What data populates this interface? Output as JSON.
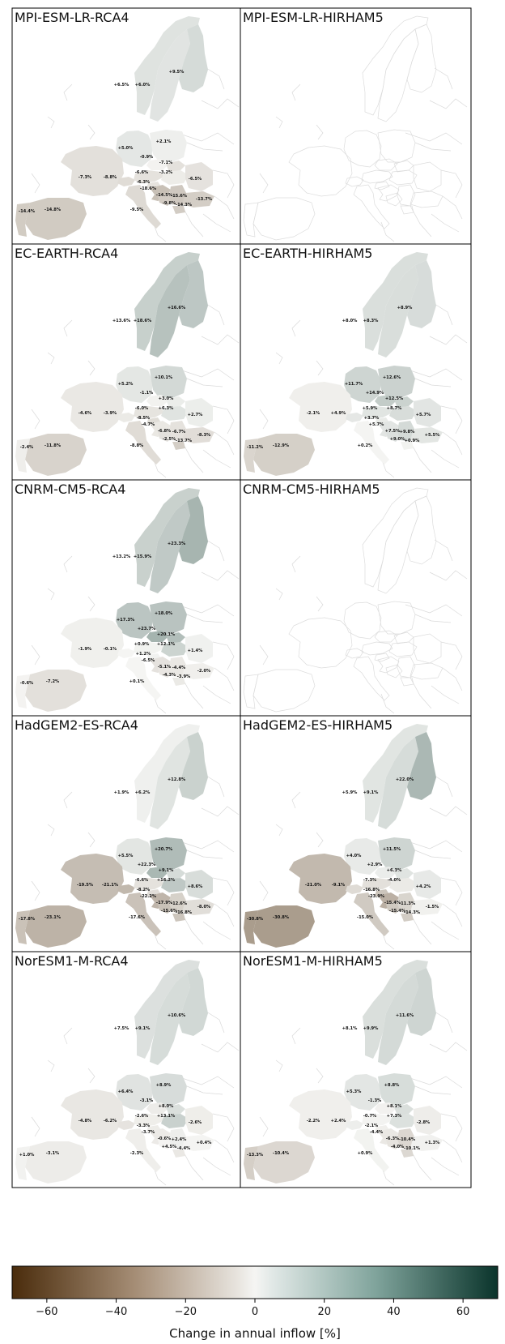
{
  "chart_data": {
    "type": "heatmap",
    "value_format": "percent",
    "colorbar": {
      "label": "Change in annual inflow [%]",
      "range": [
        -70,
        70
      ],
      "ticks": [
        -60,
        -40,
        -20,
        0,
        20,
        40,
        60
      ],
      "palette": {
        "neg_end": "#4a2c0c",
        "mid": "#f5f5f3",
        "pos_end": "#0a342b"
      }
    },
    "region_keys": [
      "NO",
      "SE",
      "FI",
      "DE",
      "PL",
      "FR",
      "CH",
      "AT",
      "CZ",
      "SK",
      "HU",
      "RO",
      "SI",
      "HR",
      "BA",
      "RS",
      "BG",
      "MK",
      "ES",
      "PT",
      "IT"
    ],
    "panels": [
      {
        "title": "MPI-ESM-LR-RCA4",
        "regions": {
          "NO": 6.5,
          "SE": 6.0,
          "FI": 9.5,
          "DE": 5.0,
          "PL": 2.1,
          "FR": -7.3,
          "CH": -8.8,
          "AT": -6.6,
          "CZ": -0.9,
          "SK": -7.1,
          "HU": -3.2,
          "RO": -6.5,
          "SI": -6.3,
          "HR": -18.6,
          "BA": -14.5,
          "RS": -15.6,
          "BG": -13.7,
          "MK": -14.3,
          "ES": -14.8,
          "PT": -14.4,
          "IT": -9.5
        },
        "extra_labels": [
          -9.8
        ]
      },
      {
        "title": "MPI-ESM-LR-HIRHAM5",
        "regions": {}
      },
      {
        "title": "EC-EARTH-RCA4",
        "regions": {
          "NO": 13.6,
          "SE": 18.6,
          "FI": 16.6,
          "DE": 5.2,
          "PL": 10.1,
          "FR": -4.6,
          "CH": -3.9,
          "AT": -6.0,
          "CZ": -1.1,
          "SK": 3.0,
          "HU": 6.3,
          "RO": 2.7,
          "SI": -8.5,
          "HR": -4.7,
          "BA": -6.8,
          "RS": -6.7,
          "BG": -8.3,
          "MK": -13.7,
          "ES": -11.8,
          "PT": -2.4,
          "IT": -8.8
        },
        "extra_labels": [
          -2.5
        ]
      },
      {
        "title": "EC-EARTH-HIRHAM5",
        "regions": {
          "NO": 8.0,
          "SE": 8.3,
          "FI": 8.9,
          "DE": 11.7,
          "PL": 12.6,
          "FR": -2.1,
          "CH": 4.9,
          "AT": 5.9,
          "CZ": 14.9,
          "SK": 12.5,
          "HU": 8.7,
          "RO": 5.7,
          "SI": 3.7,
          "HR": 5.7,
          "BA": 7.5,
          "RS": 9.8,
          "BG": 5.5,
          "MK": 0.9,
          "ES": -12.9,
          "PT": -11.2,
          "IT": 0.2
        },
        "extra_labels": [
          9.0
        ]
      },
      {
        "title": "CNRM-CM5-RCA4",
        "regions": {
          "NO": 13.2,
          "SE": 15.9,
          "FI": 23.3,
          "DE": 17.3,
          "PL": 18.0,
          "FR": -1.9,
          "CH": -0.1,
          "AT": 0.9,
          "CZ": 23.7,
          "SK": 20.1,
          "HU": 12.1,
          "RO": 1.4,
          "SI": 1.2,
          "HR": -6.5,
          "BA": -5.1,
          "RS": -4.4,
          "BG": -2.0,
          "MK": -3.9,
          "ES": -7.2,
          "PT": -0.6,
          "IT": 0.1
        },
        "extra_labels": [
          -4.3
        ]
      },
      {
        "title": "CNRM-CM5-HIRHAM5",
        "regions": {}
      },
      {
        "title": "HadGEM2-ES-RCA4",
        "regions": {
          "NO": 1.9,
          "SE": 6.2,
          "FI": 12.8,
          "DE": 5.5,
          "PL": 20.7,
          "FR": -19.5,
          "CH": -21.1,
          "AT": -6.6,
          "CZ": 22.3,
          "SK": 9.1,
          "HU": 16.2,
          "RO": 8.6,
          "SI": -8.2,
          "HR": -22.2,
          "BA": -17.9,
          "RS": -12.6,
          "BG": -8.0,
          "MK": -16.8,
          "ES": -23.1,
          "PT": -17.8,
          "IT": -17.6
        },
        "extra_labels": [
          -15.6
        ]
      },
      {
        "title": "HadGEM2-ES-HIRHAM5",
        "regions": {
          "NO": 5.9,
          "SE": 9.1,
          "FI": 22.0,
          "DE": 4.0,
          "PL": 11.5,
          "FR": -21.0,
          "CH": -9.1,
          "AT": -7.3,
          "CZ": 2.9,
          "SK": 6.3,
          "HU": -4.0,
          "RO": 4.2,
          "SI": -16.8,
          "HR": -23.9,
          "BA": -15.4,
          "RS": -11.3,
          "BG": -1.5,
          "MK": -14.3,
          "ES": -30.8,
          "PT": -30.8,
          "IT": -15.0
        },
        "extra_labels": [
          -15.4
        ]
      },
      {
        "title": "NorESM1-M-RCA4",
        "regions": {
          "NO": 7.5,
          "SE": 9.1,
          "FI": 10.6,
          "DE": 6.4,
          "PL": 8.9,
          "FR": -4.8,
          "CH": -6.2,
          "AT": -2.6,
          "CZ": -3.1,
          "SK": 8.0,
          "HU": 13.1,
          "RO": -2.6,
          "SI": -3.3,
          "HR": -3.7,
          "BA": -0.6,
          "RS": 2.4,
          "BG": 0.4,
          "MK": -4.4,
          "ES": -3.1,
          "PT": 1.0,
          "IT": -2.3
        },
        "extra_labels": [
          4.5
        ]
      },
      {
        "title": "NorESM1-M-HIRHAM5",
        "regions": {
          "NO": 8.1,
          "SE": 9.9,
          "FI": 11.6,
          "DE": 5.3,
          "PL": 8.8,
          "FR": -2.2,
          "CH": 2.4,
          "AT": -0.7,
          "CZ": -1.3,
          "SK": 8.1,
          "HU": 7.3,
          "RO": -2.8,
          "SI": -2.1,
          "HR": -4.4,
          "BA": -6.3,
          "RS": -10.4,
          "BG": 1.3,
          "MK": -10.1,
          "ES": -10.4,
          "PT": -13.3,
          "IT": 0.9
        },
        "extra_labels": [
          -4.0
        ]
      }
    ]
  }
}
